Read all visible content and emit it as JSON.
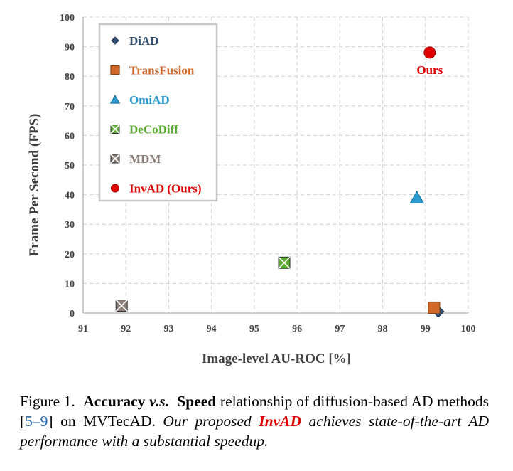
{
  "chart_data": {
    "type": "scatter",
    "title": "",
    "xlabel": "Image-level AU-ROC [%]",
    "ylabel": "Frame Per Second (FPS)",
    "xlim": [
      91,
      100
    ],
    "ylim": [
      0,
      100
    ],
    "xticks": [
      "91",
      "92",
      "93",
      "94",
      "95",
      "96",
      "97",
      "98",
      "99",
      "100"
    ],
    "yticks": [
      "0",
      "10",
      "20",
      "30",
      "40",
      "50",
      "60",
      "70",
      "80",
      "90",
      "100"
    ],
    "grid": true,
    "legend_position": "top-left",
    "series": [
      {
        "name": "DiAD",
        "x": 99.3,
        "y": 0.5,
        "marker": "diamond",
        "color": "#2f4f73"
      },
      {
        "name": "TransFusion",
        "x": 99.2,
        "y": 1.8,
        "marker": "square",
        "color": "#d2692a"
      },
      {
        "name": "OmiAD",
        "x": 98.8,
        "y": 39,
        "marker": "triangle",
        "color": "#2a9bd0"
      },
      {
        "name": "DeCoDiff",
        "x": 95.7,
        "y": 17,
        "marker": "square-x",
        "color": "#5aab2f"
      },
      {
        "name": "MDM",
        "x": 91.9,
        "y": 2.5,
        "marker": "square-x",
        "color": "#8a7d77"
      },
      {
        "name": "InvAD (Ours)",
        "x": 99.1,
        "y": 88,
        "marker": "circle",
        "color": "#e00000"
      }
    ],
    "annotations": [
      {
        "text": "Ours",
        "x": 99.1,
        "y": 82,
        "color": "#e00000"
      }
    ]
  },
  "caption": {
    "prefix": "Figure 1.",
    "bold1": "Accuracy",
    "vs": "v.s.",
    "bold2": "Speed",
    "text1": " relationship of diffusion-based AD methods [",
    "ref1": "5",
    "dash": "–",
    "ref2": "9",
    "text2": "] on MVTecAD. ",
    "italic1": "Our proposed ",
    "highlight": "InvAD",
    "italic2": " achieves state-of-the-art AD performance with a substantial speedup."
  }
}
